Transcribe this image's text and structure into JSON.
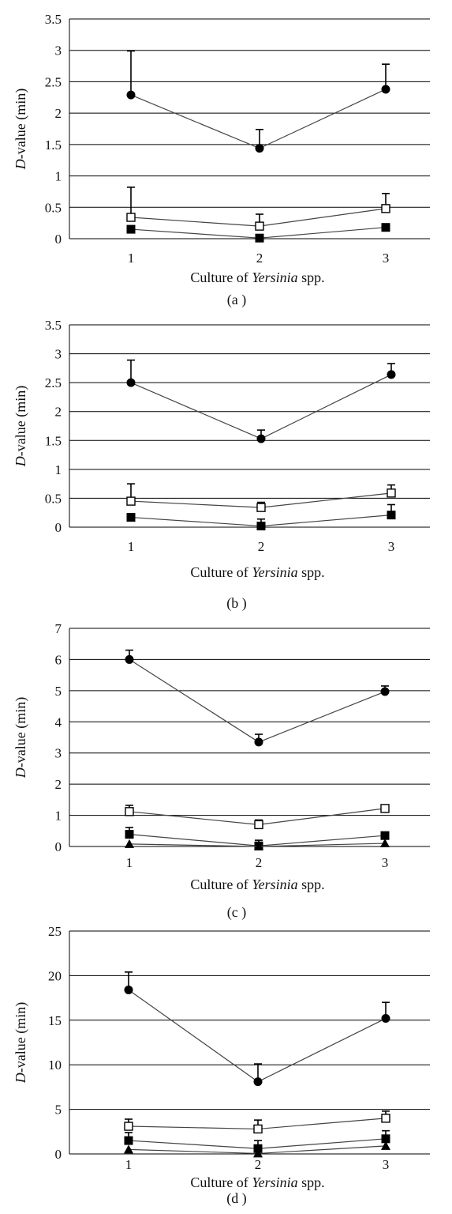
{
  "chart_data": [
    {
      "type": "line",
      "panel_label": "(a )",
      "xlabel_prefix": "Culture of ",
      "xlabel_italic": "Yersinia",
      "xlabel_suffix": " spp.",
      "ylabel_italic": "D",
      "ylabel_rest": "-value (min)",
      "categories": [
        "1",
        "2",
        "3"
      ],
      "ylim": [
        0,
        3.5
      ],
      "yticks": [
        "0",
        "0.5",
        "1",
        "1.5",
        "2",
        "2.5",
        "3",
        "3.5"
      ],
      "grid": true,
      "series": [
        {
          "marker": "filled-circle",
          "values": [
            2.29,
            1.44,
            2.38
          ],
          "errors": [
            0.7,
            0.3,
            0.4
          ]
        },
        {
          "marker": "open-square",
          "values": [
            0.34,
            0.2,
            0.48
          ],
          "errors": [
            0.48,
            0.19,
            0.24
          ]
        },
        {
          "marker": "filled-square",
          "values": [
            0.15,
            0.01,
            0.18
          ],
          "errors": [
            0,
            0,
            0
          ]
        }
      ]
    },
    {
      "type": "line",
      "panel_label": "(b )",
      "xlabel_prefix": "Culture of ",
      "xlabel_italic": "Yersinia",
      "xlabel_suffix": " spp.",
      "ylabel_italic": "D",
      "ylabel_rest": "-value (min)",
      "categories": [
        "1",
        "2",
        "3"
      ],
      "ylim": [
        0,
        3.5
      ],
      "yticks": [
        "0",
        "0.5",
        "1",
        "1.5",
        "2",
        "2.5",
        "3",
        "3.5"
      ],
      "grid": true,
      "series": [
        {
          "marker": "filled-circle",
          "values": [
            2.5,
            1.53,
            2.64
          ],
          "errors": [
            0.39,
            0.15,
            0.19
          ]
        },
        {
          "marker": "open-square",
          "values": [
            0.45,
            0.34,
            0.59
          ],
          "errors": [
            0.3,
            0.09,
            0.14
          ]
        },
        {
          "marker": "filled-square",
          "values": [
            0.17,
            0.02,
            0.21
          ],
          "errors": [
            0,
            0.12,
            0.18
          ]
        }
      ]
    },
    {
      "type": "line",
      "panel_label": "(c )",
      "xlabel_prefix": "Culture of ",
      "xlabel_italic": "Yersinia",
      "xlabel_suffix": " spp.",
      "ylabel_italic": "D",
      "ylabel_rest": "-value (min)",
      "categories": [
        "1",
        "2",
        "3"
      ],
      "ylim": [
        0,
        7
      ],
      "yticks": [
        "0",
        "1",
        "2",
        "3",
        "4",
        "5",
        "6",
        "7"
      ],
      "grid": true,
      "series": [
        {
          "marker": "filled-circle",
          "values": [
            6.0,
            3.35,
            4.97
          ],
          "errors": [
            0.3,
            0.25,
            0.18
          ]
        },
        {
          "marker": "open-square",
          "values": [
            1.12,
            0.7,
            1.22
          ],
          "errors": [
            0.2,
            0.15,
            0.05
          ]
        },
        {
          "marker": "filled-square",
          "values": [
            0.39,
            0.02,
            0.35
          ],
          "errors": [
            0.22,
            0.18,
            0.05
          ]
        },
        {
          "marker": "filled-triangle",
          "values": [
            0.08,
            0.0,
            0.1
          ],
          "errors": [
            0,
            0,
            0
          ]
        }
      ]
    },
    {
      "type": "line",
      "panel_label": "(d )",
      "xlabel_prefix": "Culture of ",
      "xlabel_italic": "Yersinia",
      "xlabel_suffix": " spp.",
      "ylabel_italic": "D",
      "ylabel_rest": "-value (min)",
      "categories": [
        "1",
        "2",
        "3"
      ],
      "ylim": [
        0,
        25
      ],
      "yticks": [
        "0",
        "5",
        "10",
        "15",
        "20",
        "25"
      ],
      "grid": true,
      "series": [
        {
          "marker": "filled-circle",
          "values": [
            18.4,
            8.1,
            15.2
          ],
          "errors": [
            2.0,
            2.0,
            1.8
          ]
        },
        {
          "marker": "open-square",
          "values": [
            3.1,
            2.8,
            4.0
          ],
          "errors": [
            0.8,
            1.0,
            0.8
          ]
        },
        {
          "marker": "filled-square",
          "values": [
            1.5,
            0.6,
            1.7
          ],
          "errors": [
            0.9,
            0.9,
            0.9
          ]
        },
        {
          "marker": "filled-triangle",
          "values": [
            0.5,
            0.05,
            0.9
          ],
          "errors": [
            0,
            0,
            0
          ]
        }
      ]
    }
  ]
}
